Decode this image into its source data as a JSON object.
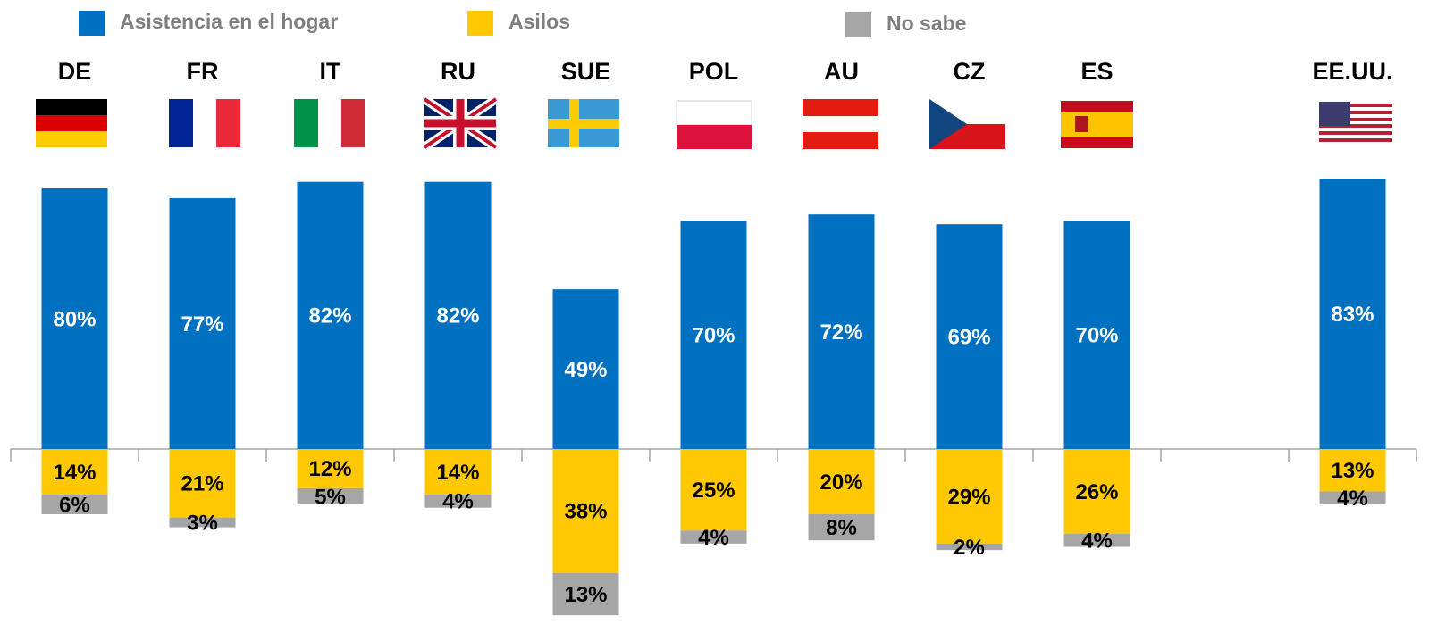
{
  "chart_data": {
    "type": "diverging-stacked-bar",
    "categories": [
      "DE",
      "FR",
      "IT",
      "RU",
      "SUE",
      "POL",
      "AU",
      "CZ",
      "ES",
      null,
      "EE.UU."
    ],
    "series": [
      {
        "name": "Asistencia en el hogar",
        "color": "#0070c0",
        "values": [
          80,
          77,
          82,
          82,
          49,
          70,
          72,
          69,
          70,
          null,
          83
        ],
        "value_labels": [
          "80%",
          "77%",
          "82%",
          "82%",
          "49%",
          "70%",
          "72%",
          "69%",
          "70%",
          null,
          "83%"
        ]
      },
      {
        "name": "Asilos",
        "color": "#ffc800",
        "values": [
          14,
          21,
          12,
          14,
          38,
          25,
          20,
          29,
          26,
          null,
          13
        ],
        "value_labels": [
          "14%",
          "21%",
          "12%",
          "14%",
          "38%",
          "25%",
          "20%",
          "29%",
          "26%",
          null,
          "13%"
        ]
      },
      {
        "name": "No sabe",
        "color": "#a6a6a6",
        "values": [
          6,
          3,
          5,
          4,
          13,
          4,
          8,
          2,
          4,
          null,
          4
        ],
        "value_labels": [
          "6%",
          "3%",
          "5%",
          "4%",
          "13%",
          "4%",
          "8%",
          "2%",
          "4%",
          null,
          "4%"
        ]
      }
    ]
  }
}
